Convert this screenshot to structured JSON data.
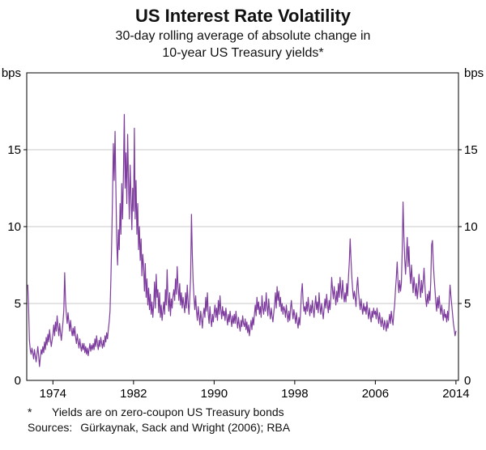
{
  "footnote": {
    "marker": "*",
    "text": "Yields are on zero-coupon US Treasury bonds"
  },
  "sources": {
    "label": "Sources:",
    "text": "Gürkaynak, Sack and Wright (2006); RBA"
  },
  "chart_data": {
    "type": "line",
    "title": "US Interest Rate Volatility",
    "subtitle_lines": [
      "30-day rolling average of absolute change in",
      "10-year US Treasury yields*"
    ],
    "unit": "bps",
    "ylabel_left": "bps",
    "ylabel_right": "bps",
    "ylim": [
      0,
      20
    ],
    "y_ticks": [
      0,
      5,
      10,
      15
    ],
    "gridlines": [
      5,
      10,
      15
    ],
    "xlim": [
      1971.4,
      2014.25
    ],
    "x_ticks": [
      1974,
      1982,
      1990,
      1998,
      2006,
      2014
    ],
    "legend": "none",
    "line_color": "#7D3C9E",
    "grid_color": "#c9c9c9",
    "axis_color": "#000000",
    "series": [
      {
        "name": "30-day rolling average of absolute change in 10-year US Treasury yields (bps)",
        "start": 1971.5,
        "step": 0.0833333,
        "values": [
          6.2,
          4.8,
          2.6,
          2.0,
          1.7,
          2.1,
          1.8,
          1.4,
          2.0,
          1.6,
          1.2,
          1.7,
          2.2,
          1.6,
          0.9,
          1.5,
          2.0,
          1.7,
          2.2,
          1.8,
          2.5,
          2.0,
          2.8,
          2.3,
          3.0,
          2.5,
          3.3,
          2.7,
          2.2,
          2.6,
          3.0,
          3.6,
          2.9,
          3.8,
          3.2,
          4.2,
          3.5,
          2.9,
          3.7,
          3.1,
          2.6,
          3.2,
          3.8,
          4.6,
          7.0,
          5.2,
          4.3,
          3.7,
          4.4,
          3.8,
          3.2,
          3.9,
          3.3,
          2.9,
          3.4,
          2.9,
          3.5,
          2.8,
          2.4,
          3.0,
          2.5,
          2.1,
          2.7,
          2.2,
          1.9,
          2.4,
          2.0,
          2.4,
          1.8,
          2.2,
          1.7,
          2.1,
          1.6,
          2.0,
          2.4,
          1.9,
          2.3,
          2.0,
          2.4,
          2.0,
          2.7,
          2.2,
          2.9,
          2.4,
          2.0,
          2.6,
          2.2,
          2.8,
          2.4,
          2.1,
          2.6,
          2.2,
          2.9,
          2.5,
          3.1,
          2.7,
          3.3,
          3.8,
          4.5,
          6.5,
          9.0,
          12.0,
          15.4,
          13.0,
          16.2,
          12.5,
          9.0,
          7.5,
          9.8,
          8.5,
          11.5,
          9.5,
          12.8,
          10.5,
          13.5,
          17.3,
          12.5,
          14.8,
          11.5,
          16.0,
          13.0,
          10.5,
          14.0,
          12.0,
          9.8,
          12.5,
          11.0,
          16.4,
          10.5,
          13.0,
          9.5,
          11.5,
          8.5,
          10.0,
          7.8,
          9.2,
          6.8,
          8.2,
          7.4,
          5.8,
          7.6,
          5.4,
          6.6,
          4.9,
          6.0,
          4.6,
          5.6,
          4.3,
          5.1,
          4.1,
          4.9,
          6.4,
          4.7,
          6.9,
          5.4,
          5.9,
          4.4,
          5.7,
          4.1,
          4.9,
          3.9,
          4.5,
          5.1,
          4.3,
          5.9,
          4.9,
          7.2,
          5.4,
          4.5,
          5.7,
          4.2,
          5.3,
          4.7,
          5.5,
          5.9,
          5.2,
          6.6,
          5.6,
          7.4,
          6.1,
          5.2,
          6.3,
          4.9,
          5.7,
          4.7,
          5.4,
          4.9,
          4.4,
          5.7,
          4.7,
          6.2,
          5.1,
          4.3,
          5.4,
          6.7,
          10.8,
          8.2,
          6.4,
          5.4,
          4.6,
          5.5,
          4.5,
          3.9,
          4.8,
          4.2,
          3.6,
          4.5,
          4.0,
          3.4,
          4.3,
          4.7,
          4.1,
          5.4,
          4.5,
          5.7,
          4.3,
          3.7,
          4.8,
          4.0,
          3.5,
          4.3,
          3.8,
          4.4,
          4.9,
          4.1,
          4.7,
          3.9,
          5.2,
          4.3,
          5.5,
          4.6,
          4.0,
          4.8,
          4.2,
          4.5,
          3.9,
          4.7,
          4.1,
          3.6,
          4.3,
          3.8,
          4.5,
          4.0,
          3.5,
          4.2,
          3.7,
          4.3,
          3.7,
          4.5,
          3.9,
          3.4,
          4.1,
          3.6,
          3.2,
          3.9,
          3.5,
          4.2,
          3.7,
          3.5,
          4.0,
          3.3,
          3.8,
          3.1,
          3.6,
          2.9,
          3.4,
          3.9,
          3.3,
          4.1,
          3.6,
          4.3,
          4.9,
          4.2,
          5.4,
          4.6,
          5.1,
          4.3,
          4.8,
          4.1,
          5.5,
          4.7,
          4.3,
          5.1,
          4.5,
          5.7,
          4.8,
          4.2,
          5.3,
          4.5,
          4.0,
          4.7,
          4.2,
          3.8,
          4.4,
          4.9,
          5.7,
          4.7,
          6.1,
          5.2,
          5.8,
          4.8,
          5.4,
          4.5,
          5.0,
          4.3,
          4.8,
          4.6,
          4.1,
          4.9,
          4.3,
          3.8,
          4.5,
          3.9,
          4.7,
          5.2,
          4.5,
          4.0,
          4.6,
          4.2,
          3.7,
          4.4,
          3.8,
          3.4,
          4.1,
          3.6,
          4.5,
          5.7,
          6.3,
          5.1,
          4.5,
          4.8,
          4.3,
          5.1,
          4.5,
          5.4,
          4.7,
          4.2,
          4.9,
          4.4,
          5.2,
          4.6,
          4.1,
          4.9,
          5.5,
          4.6,
          5.1,
          4.4,
          5.7,
          4.8,
          4.3,
          5.0,
          4.5,
          4.0,
          4.7,
          5.3,
          4.7,
          5.6,
          4.9,
          4.4,
          5.2,
          4.6,
          5.4,
          6.7,
          5.9,
          5.3,
          6.1,
          5.5,
          4.9,
          5.8,
          5.1,
          6.3,
          5.4,
          6.7,
          5.9,
          5.3,
          6.5,
          5.7,
          5.1,
          5.7,
          5.1,
          6.3,
          5.5,
          6.7,
          7.7,
          9.2,
          7.9,
          6.7,
          5.9,
          5.3,
          5.8,
          5.4,
          4.8,
          6.1,
          6.7,
          5.7,
          5.1,
          4.6,
          5.3,
          4.7,
          4.3,
          5.0,
          4.5,
          4.8,
          4.3,
          5.1,
          4.5,
          4.0,
          4.7,
          4.2,
          3.8,
          4.5,
          4.1,
          4.7,
          4.3,
          4.5,
          4.0,
          4.7,
          4.2,
          3.7,
          4.4,
          3.9,
          3.5,
          4.1,
          3.7,
          3.3,
          3.9,
          3.6,
          3.2,
          3.9,
          3.4,
          3.8,
          4.3,
          3.7,
          4.5,
          4.0,
          3.6,
          4.4,
          4.9,
          5.9,
          6.7,
          7.7,
          6.4,
          5.7,
          6.5,
          5.8,
          6.3,
          8.4,
          11.6,
          9.4,
          7.9,
          6.9,
          8.1,
          9.3,
          7.4,
          8.7,
          7.1,
          6.3,
          7.5,
          6.5,
          5.7,
          6.7,
          6.1,
          5.5,
          6.3,
          5.3,
          5.9,
          6.9,
          6.1,
          5.4,
          6.5,
          5.7,
          6.4,
          7.3,
          6.2,
          5.3,
          4.8,
          5.6,
          5.0,
          5.8,
          5.2,
          6.4,
          8.8,
          9.1,
          7.7,
          6.7,
          5.9,
          5.1,
          4.5,
          5.4,
          4.7,
          5.5,
          4.8,
          4.3,
          4.9,
          4.4,
          3.9,
          4.6,
          4.1,
          4.3,
          3.8,
          4.5,
          3.9,
          5.1,
          6.2,
          5.5,
          4.9,
          4.3,
          3.7,
          3.3,
          2.9,
          3.2
        ]
      }
    ]
  }
}
